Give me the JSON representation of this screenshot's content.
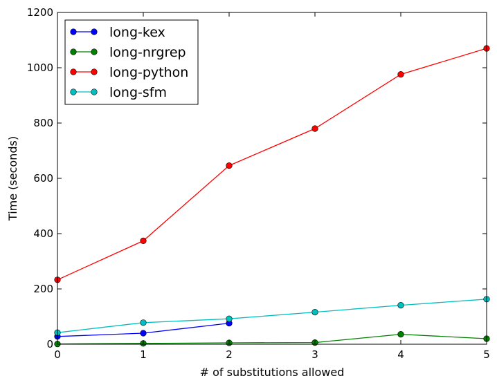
{
  "chart_data": {
    "type": "line",
    "title": "",
    "xlabel": "# of substitutions allowed",
    "ylabel": "Time (seconds)",
    "xlim": [
      0,
      5
    ],
    "ylim": [
      0,
      1200
    ],
    "xticks": [
      0,
      1,
      2,
      3,
      4,
      5
    ],
    "yticks": [
      0,
      200,
      400,
      600,
      800,
      1000,
      1200
    ],
    "grid": false,
    "legend_position": "top-left",
    "series": [
      {
        "name": "long-kex",
        "color": "#0000ff",
        "x": [
          0,
          1,
          2
        ],
        "values": [
          28,
          40,
          76
        ]
      },
      {
        "name": "long-nrgrep",
        "color": "#008000",
        "x": [
          0,
          1,
          2,
          3,
          4,
          5
        ],
        "values": [
          1,
          3,
          5,
          6,
          36,
          20
        ]
      },
      {
        "name": "long-python",
        "color": "#ff0000",
        "x": [
          0,
          1,
          2,
          3,
          4,
          5
        ],
        "values": [
          233,
          374,
          646,
          780,
          976,
          1070
        ]
      },
      {
        "name": "long-sfm",
        "color": "#00bfbf",
        "x": [
          0,
          1,
          2,
          3,
          4,
          5
        ],
        "values": [
          42,
          78,
          92,
          116,
          141,
          163
        ]
      }
    ]
  }
}
